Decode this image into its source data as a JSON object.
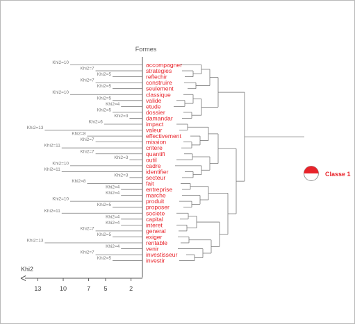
{
  "header": "Formes",
  "axis": {
    "label": "Khi2",
    "ticks": [
      "13",
      "10",
      "7",
      "5",
      "2"
    ]
  },
  "class_label": "Classe 1",
  "colors": {
    "word": "#e8232a",
    "khi": "#777777",
    "line": "#777777",
    "axis": "#555555"
  },
  "rows": [
    {
      "word": "accompagner",
      "khi": "Khi2=10"
    },
    {
      "word": "strategies",
      "khi": "Khi2=7"
    },
    {
      "word": "reflechir",
      "khi": "Khi2=5"
    },
    {
      "word": "construire",
      "khi": "Khi2=7"
    },
    {
      "word": "seulement",
      "khi": "Khi2=5"
    },
    {
      "word": "classique",
      "khi": "Khi2=10"
    },
    {
      "word": "valide",
      "khi": "Khi2=5"
    },
    {
      "word": "etude",
      "khi": "Khi2=4"
    },
    {
      "word": "dossier",
      "khi": "Khi2=5"
    },
    {
      "word": "damandar",
      "khi": "Khi2=3"
    },
    {
      "word": "impact",
      "khi": "Khi2=6"
    },
    {
      "word": "valeur",
      "khi": "Khi2=13"
    },
    {
      "word": "effectivement",
      "khi": "Khi2=8"
    },
    {
      "word": "mission",
      "khi": "Khi2=7"
    },
    {
      "word": "critere",
      "khi": "Khi2=11"
    },
    {
      "word": "quantifi",
      "khi": "Khi2=7"
    },
    {
      "word": "outil",
      "khi": "Khi2=3"
    },
    {
      "word": "cadre",
      "khi": "Khi2=10"
    },
    {
      "word": "identifier",
      "khi": "Khi2=11"
    },
    {
      "word": "secteur",
      "khi": "Khi2=3"
    },
    {
      "word": "fait",
      "khi": "Khi2=8"
    },
    {
      "word": "entreprise",
      "khi": "Khi2=4"
    },
    {
      "word": "marche",
      "khi": "Khi2=4"
    },
    {
      "word": "produit",
      "khi": "Khi2=10"
    },
    {
      "word": "proposer",
      "khi": "Khi2=5"
    },
    {
      "word": "societe",
      "khi": "Khi2=11"
    },
    {
      "word": "capital",
      "khi": "Khi2=4"
    },
    {
      "word": "interet",
      "khi": "Khi2=4"
    },
    {
      "word": "general",
      "khi": "Khi2=7"
    },
    {
      "word": "exiger",
      "khi": "Khi2=5"
    },
    {
      "word": "rentable",
      "khi": "Khi2=13"
    },
    {
      "word": "venir",
      "khi": "Khi2=4"
    },
    {
      "word": "investisseur",
      "khi": "Khi2=7"
    },
    {
      "word": "investir",
      "khi": "Khi2=5"
    }
  ]
}
